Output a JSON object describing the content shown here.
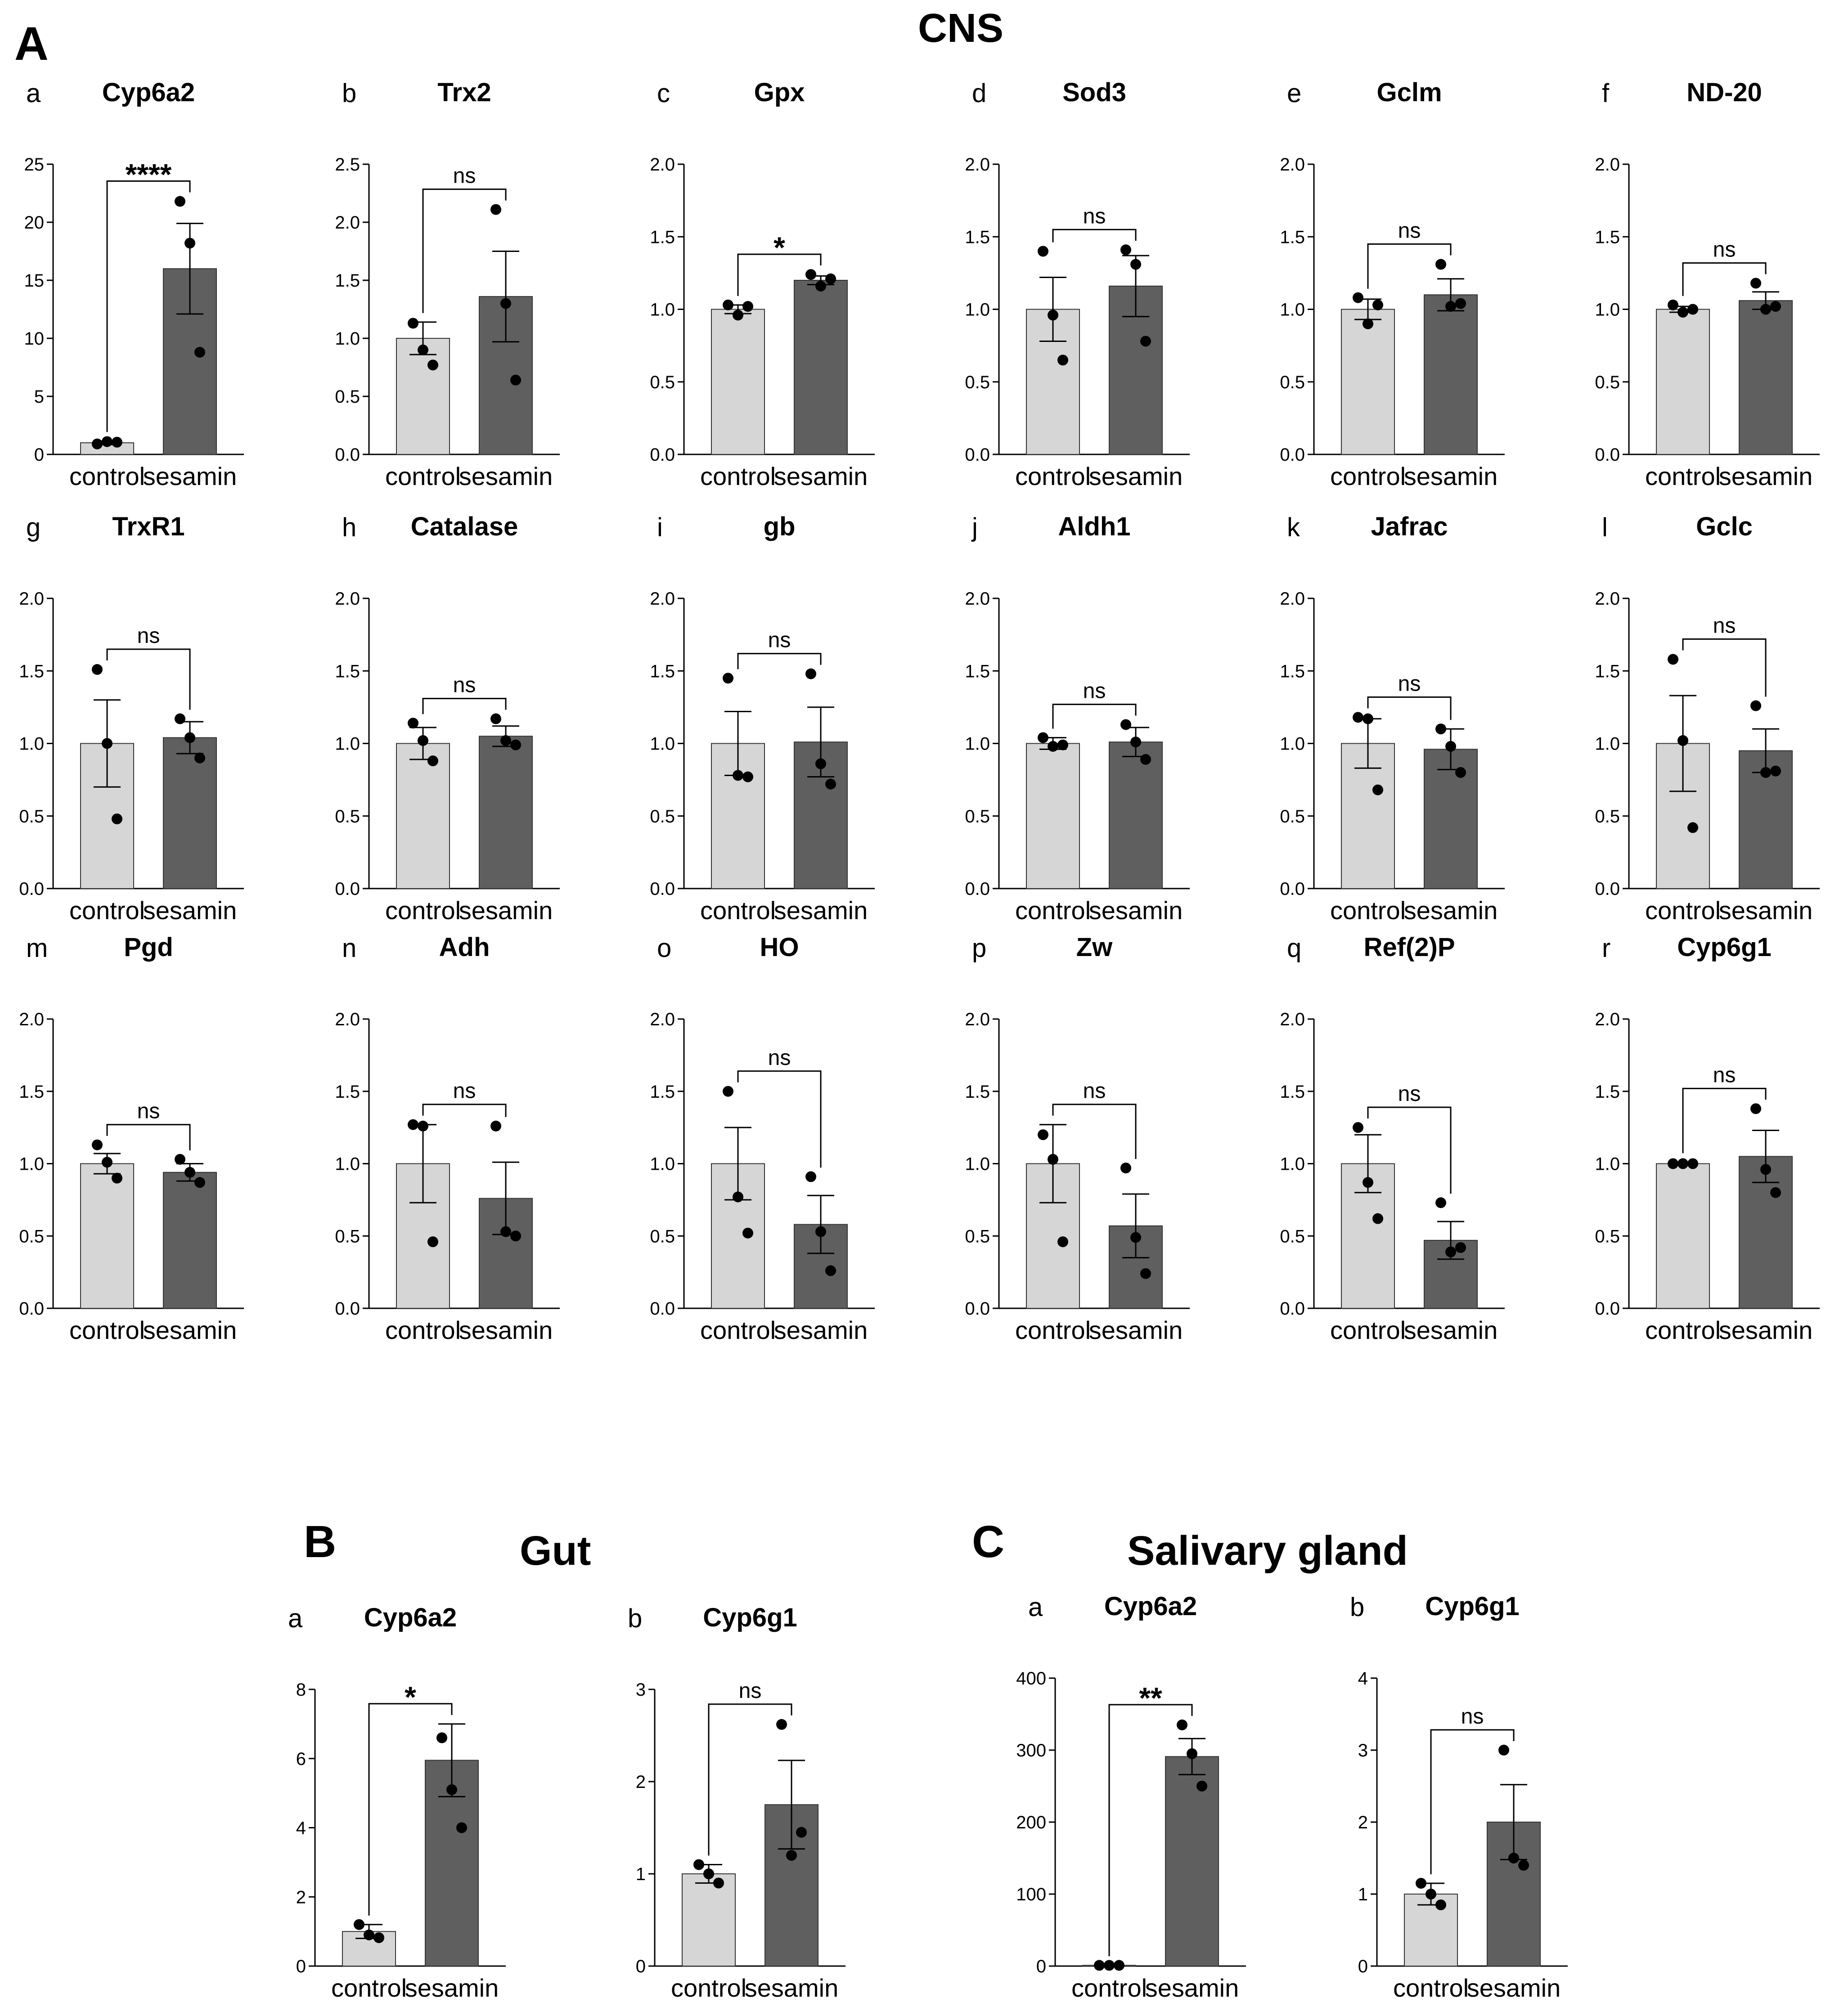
{
  "figure": {
    "section_A": {
      "letter": "A",
      "title": "CNS"
    },
    "section_B": {
      "letter": "B",
      "title": "Gut"
    },
    "section_C": {
      "letter": "C",
      "title": "Salivary gland"
    }
  },
  "colors": {
    "control_bar": "#d6d6d6",
    "sesamin_bar": "#5f5f5f",
    "axis": "#000000",
    "point": "#000000"
  },
  "chart_data": [
    {
      "id": "A-a",
      "section": "A",
      "letter": "a",
      "type": "bar",
      "title": "Cyp6a2",
      "categories": [
        "control",
        "sesamin"
      ],
      "values": [
        1.0,
        16.0
      ],
      "errors": [
        0.15,
        3.9
      ],
      "points": [
        [
          0.9,
          1.1,
          1.05
        ],
        [
          21.8,
          18.2,
          8.8
        ]
      ],
      "ylim": [
        0,
        25
      ],
      "yticks": [
        0,
        5,
        10,
        15,
        20,
        25
      ],
      "sig": "****"
    },
    {
      "id": "A-b",
      "section": "A",
      "letter": "b",
      "type": "bar",
      "title": "Trx2",
      "categories": [
        "control",
        "sesamin"
      ],
      "values": [
        1.0,
        1.36
      ],
      "errors": [
        0.14,
        0.39
      ],
      "points": [
        [
          1.13,
          0.9,
          0.77
        ],
        [
          2.11,
          1.3,
          0.64
        ]
      ],
      "ylim": [
        0,
        2.5
      ],
      "yticks": [
        0.0,
        0.5,
        1.0,
        1.5,
        2.0,
        2.5
      ],
      "sig": "ns"
    },
    {
      "id": "A-c",
      "section": "A",
      "letter": "c",
      "type": "bar",
      "title": "Gpx",
      "categories": [
        "control",
        "sesamin"
      ],
      "values": [
        1.0,
        1.2
      ],
      "errors": [
        0.03,
        0.03
      ],
      "points": [
        [
          1.03,
          0.96,
          1.02
        ],
        [
          1.24,
          1.16,
          1.21
        ]
      ],
      "ylim": [
        0,
        2.0
      ],
      "yticks": [
        0.0,
        0.5,
        1.0,
        1.5,
        2.0
      ],
      "sig": "*"
    },
    {
      "id": "A-d",
      "section": "A",
      "letter": "d",
      "type": "bar",
      "title": "Sod3",
      "categories": [
        "control",
        "sesamin"
      ],
      "values": [
        1.0,
        1.16
      ],
      "errors": [
        0.22,
        0.21
      ],
      "points": [
        [
          1.4,
          0.96,
          0.65
        ],
        [
          1.41,
          1.31,
          0.78
        ]
      ],
      "ylim": [
        0,
        2.0
      ],
      "yticks": [
        0.0,
        0.5,
        1.0,
        1.5,
        2.0
      ],
      "sig": "ns"
    },
    {
      "id": "A-e",
      "section": "A",
      "letter": "e",
      "type": "bar",
      "title": "Gclm",
      "categories": [
        "control",
        "sesamin"
      ],
      "values": [
        1.0,
        1.1
      ],
      "errors": [
        0.07,
        0.11
      ],
      "points": [
        [
          1.08,
          0.9,
          1.03
        ],
        [
          1.31,
          1.02,
          1.04
        ]
      ],
      "ylim": [
        0,
        2.0
      ],
      "yticks": [
        0.0,
        0.5,
        1.0,
        1.5,
        2.0
      ],
      "sig": "ns"
    },
    {
      "id": "A-f",
      "section": "A",
      "letter": "f",
      "type": "bar",
      "title": "ND-20",
      "categories": [
        "control",
        "sesamin"
      ],
      "values": [
        1.0,
        1.06
      ],
      "errors": [
        0.02,
        0.06
      ],
      "points": [
        [
          1.03,
          0.98,
          1.0
        ],
        [
          1.18,
          1.0,
          1.02
        ]
      ],
      "ylim": [
        0,
        2.0
      ],
      "yticks": [
        0.0,
        0.5,
        1.0,
        1.5,
        2.0
      ],
      "sig": "ns"
    },
    {
      "id": "A-g",
      "section": "A",
      "letter": "g",
      "type": "bar",
      "title": "TrxR1",
      "categories": [
        "control",
        "sesamin"
      ],
      "values": [
        1.0,
        1.04
      ],
      "errors": [
        0.3,
        0.11
      ],
      "points": [
        [
          1.51,
          1.0,
          0.48
        ],
        [
          1.17,
          1.04,
          0.9
        ]
      ],
      "ylim": [
        0,
        2.0
      ],
      "yticks": [
        0.0,
        0.5,
        1.0,
        1.5,
        2.0
      ],
      "sig": "ns"
    },
    {
      "id": "A-h",
      "section": "A",
      "letter": "h",
      "type": "bar",
      "title": "Catalase",
      "categories": [
        "control",
        "sesamin"
      ],
      "values": [
        1.0,
        1.05
      ],
      "errors": [
        0.11,
        0.07
      ],
      "points": [
        [
          1.14,
          1.02,
          0.88
        ],
        [
          1.17,
          1.02,
          0.99
        ]
      ],
      "ylim": [
        0,
        2.0
      ],
      "yticks": [
        0.0,
        0.5,
        1.0,
        1.5,
        2.0
      ],
      "sig": "ns"
    },
    {
      "id": "A-i",
      "section": "A",
      "letter": "i",
      "type": "bar",
      "title": "gb",
      "categories": [
        "control",
        "sesamin"
      ],
      "values": [
        1.0,
        1.01
      ],
      "errors": [
        0.22,
        0.24
      ],
      "points": [
        [
          1.45,
          0.78,
          0.77
        ],
        [
          1.48,
          0.86,
          0.72
        ]
      ],
      "ylim": [
        0,
        2.0
      ],
      "yticks": [
        0.0,
        0.5,
        1.0,
        1.5,
        2.0
      ],
      "sig": "ns"
    },
    {
      "id": "A-j",
      "section": "A",
      "letter": "j",
      "type": "bar",
      "title": "Aldh1",
      "categories": [
        "control",
        "sesamin"
      ],
      "values": [
        1.0,
        1.01
      ],
      "errors": [
        0.04,
        0.1
      ],
      "points": [
        [
          1.04,
          0.98,
          0.99
        ],
        [
          1.13,
          1.01,
          0.89
        ]
      ],
      "ylim": [
        0,
        2.0
      ],
      "yticks": [
        0.0,
        0.5,
        1.0,
        1.5,
        2.0
      ],
      "sig": "ns"
    },
    {
      "id": "A-k",
      "section": "A",
      "letter": "k",
      "type": "bar",
      "title": "Jafrac",
      "categories": [
        "control",
        "sesamin"
      ],
      "values": [
        1.0,
        0.96
      ],
      "errors": [
        0.17,
        0.14
      ],
      "points": [
        [
          1.18,
          1.17,
          0.68
        ],
        [
          1.1,
          0.98,
          0.8
        ]
      ],
      "ylim": [
        0,
        2.0
      ],
      "yticks": [
        0.0,
        0.5,
        1.0,
        1.5,
        2.0
      ],
      "sig": "ns"
    },
    {
      "id": "A-l",
      "section": "A",
      "letter": "l",
      "type": "bar",
      "title": "Gclc",
      "categories": [
        "control",
        "sesamin"
      ],
      "values": [
        1.0,
        0.95
      ],
      "errors": [
        0.33,
        0.15
      ],
      "points": [
        [
          1.58,
          1.02,
          0.42
        ],
        [
          1.26,
          0.8,
          0.81
        ]
      ],
      "ylim": [
        0,
        2.0
      ],
      "yticks": [
        0.0,
        0.5,
        1.0,
        1.5,
        2.0
      ],
      "sig": "ns"
    },
    {
      "id": "A-m",
      "section": "A",
      "letter": "m",
      "type": "bar",
      "title": "Pgd",
      "categories": [
        "control",
        "sesamin"
      ],
      "values": [
        1.0,
        0.94
      ],
      "errors": [
        0.07,
        0.06
      ],
      "points": [
        [
          1.13,
          1.01,
          0.9
        ],
        [
          1.03,
          0.94,
          0.87
        ]
      ],
      "ylim": [
        0,
        2.0
      ],
      "yticks": [
        0.0,
        0.5,
        1.0,
        1.5,
        2.0
      ],
      "sig": "ns"
    },
    {
      "id": "A-n",
      "section": "A",
      "letter": "n",
      "type": "bar",
      "title": "Adh",
      "categories": [
        "control",
        "sesamin"
      ],
      "values": [
        1.0,
        0.76
      ],
      "errors": [
        0.27,
        0.25
      ],
      "points": [
        [
          1.27,
          1.26,
          0.46
        ],
        [
          1.26,
          0.53,
          0.5
        ]
      ],
      "ylim": [
        0,
        2.0
      ],
      "yticks": [
        0.0,
        0.5,
        1.0,
        1.5,
        2.0
      ],
      "sig": "ns"
    },
    {
      "id": "A-o",
      "section": "A",
      "letter": "o",
      "type": "bar",
      "title": "HO",
      "categories": [
        "control",
        "sesamin"
      ],
      "values": [
        1.0,
        0.58
      ],
      "errors": [
        0.25,
        0.2
      ],
      "points": [
        [
          1.5,
          0.77,
          0.52
        ],
        [
          0.91,
          0.53,
          0.26
        ]
      ],
      "ylim": [
        0,
        2.0
      ],
      "yticks": [
        0.0,
        0.5,
        1.0,
        1.5,
        2.0
      ],
      "sig": "ns"
    },
    {
      "id": "A-p",
      "section": "A",
      "letter": "p",
      "type": "bar",
      "title": "Zw",
      "categories": [
        "control",
        "sesamin"
      ],
      "values": [
        1.0,
        0.57
      ],
      "errors": [
        0.27,
        0.22
      ],
      "points": [
        [
          1.2,
          1.03,
          0.46
        ],
        [
          0.97,
          0.49,
          0.24
        ]
      ],
      "ylim": [
        0,
        2.0
      ],
      "yticks": [
        0.0,
        0.5,
        1.0,
        1.5,
        2.0
      ],
      "sig": "ns"
    },
    {
      "id": "A-q",
      "section": "A",
      "letter": "q",
      "type": "bar",
      "title": "Ref(2)P",
      "categories": [
        "control",
        "sesamin"
      ],
      "values": [
        1.0,
        0.47
      ],
      "errors": [
        0.2,
        0.13
      ],
      "points": [
        [
          1.25,
          0.87,
          0.62
        ],
        [
          0.73,
          0.39,
          0.42
        ]
      ],
      "ylim": [
        0,
        2.0
      ],
      "yticks": [
        0.0,
        0.5,
        1.0,
        1.5,
        2.0
      ],
      "sig": "ns"
    },
    {
      "id": "A-r",
      "section": "A",
      "letter": "r",
      "type": "bar",
      "title": "Cyp6g1",
      "categories": [
        "control",
        "sesamin"
      ],
      "values": [
        1.0,
        1.05
      ],
      "errors": [
        0.01,
        0.18
      ],
      "points": [
        [
          1.0,
          1.0,
          1.0
        ],
        [
          1.38,
          0.96,
          0.8
        ]
      ],
      "ylim": [
        0,
        2.0
      ],
      "yticks": [
        0.0,
        0.5,
        1.0,
        1.5,
        2.0
      ],
      "sig": "ns"
    },
    {
      "id": "B-a",
      "section": "B",
      "letter": "a",
      "type": "bar",
      "title": "Cyp6a2",
      "categories": [
        "control",
        "sesamin"
      ],
      "values": [
        1.0,
        5.95
      ],
      "errors": [
        0.2,
        1.05
      ],
      "points": [
        [
          1.2,
          0.9,
          0.82
        ],
        [
          6.6,
          5.1,
          4.0
        ]
      ],
      "ylim": [
        0,
        8
      ],
      "yticks": [
        0,
        2,
        4,
        6,
        8
      ],
      "sig": "*"
    },
    {
      "id": "B-b",
      "section": "B",
      "letter": "b",
      "type": "bar",
      "title": "Cyp6g1",
      "categories": [
        "control",
        "sesamin"
      ],
      "values": [
        1.0,
        1.75
      ],
      "errors": [
        0.1,
        0.48
      ],
      "points": [
        [
          1.1,
          1.0,
          0.9
        ],
        [
          2.62,
          1.2,
          1.45
        ]
      ],
      "ylim": [
        0,
        3
      ],
      "yticks": [
        0,
        1,
        2,
        3
      ],
      "sig": "ns"
    },
    {
      "id": "C-a",
      "section": "C",
      "letter": "a",
      "type": "bar",
      "title": "Cyp6a2",
      "categories": [
        "control",
        "sesamin"
      ],
      "values": [
        1.0,
        291
      ],
      "errors": [
        0.1,
        25
      ],
      "points": [
        [
          1.0,
          1.0,
          1.0
        ],
        [
          335,
          295,
          250
        ]
      ],
      "ylim": [
        0,
        400
      ],
      "yticks": [
        0,
        100,
        200,
        300,
        400
      ],
      "sig": "**"
    },
    {
      "id": "C-b",
      "section": "C",
      "letter": "b",
      "type": "bar",
      "title": "Cyp6g1",
      "categories": [
        "control",
        "sesamin"
      ],
      "values": [
        1.0,
        2.0
      ],
      "errors": [
        0.15,
        0.52
      ],
      "points": [
        [
          1.15,
          1.0,
          0.85
        ],
        [
          3.0,
          1.5,
          1.4
        ]
      ],
      "ylim": [
        0,
        4
      ],
      "yticks": [
        0,
        1,
        2,
        3,
        4
      ],
      "sig": "ns"
    }
  ]
}
